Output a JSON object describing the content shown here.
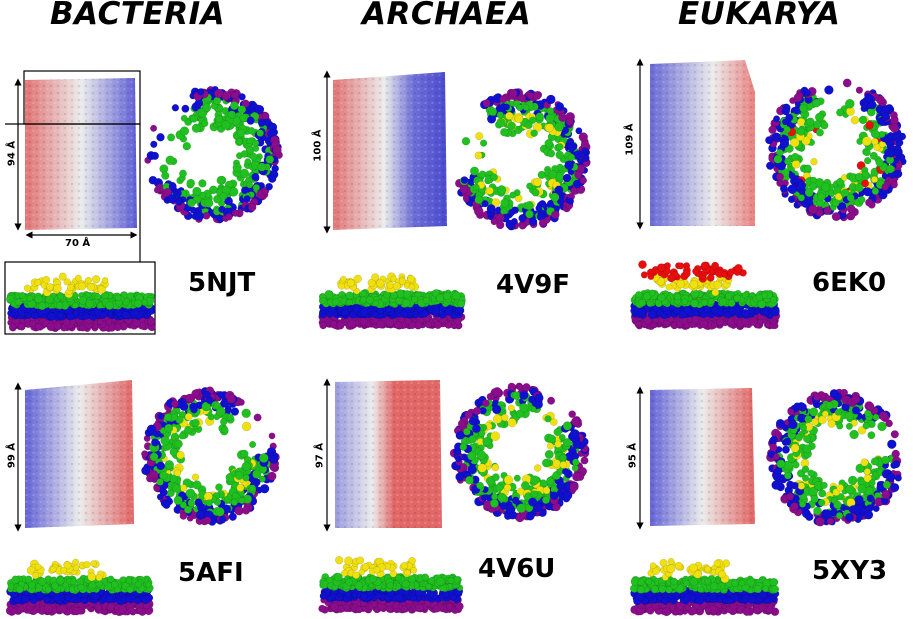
{
  "domains": [
    "BACTERIA",
    "ARCHAEA",
    "EUKARYA"
  ],
  "panels": [
    {
      "pdb": "5NJT",
      "height_label": "94 Å",
      "width_label": "70 Å"
    },
    {
      "pdb": "4V9F",
      "height_label": "100 Å"
    },
    {
      "pdb": "6EK0",
      "height_label": "109 Å"
    },
    {
      "pdb": "5AFI",
      "height_label": "99 Å"
    },
    {
      "pdb": "4V6U",
      "height_label": "97 Å"
    },
    {
      "pdb": "5XY3",
      "height_label": "95 Å"
    }
  ],
  "layer_colors": {
    "layer1": "#8b0d8b",
    "layer2": "#1010d0",
    "layer3": "#20c020",
    "layer4": "#f0e010",
    "layer5": "#e80e0e"
  },
  "surface_colors": {
    "red": "#e06060",
    "white": "#e8e8e8",
    "blue": "#6a6ad8"
  }
}
